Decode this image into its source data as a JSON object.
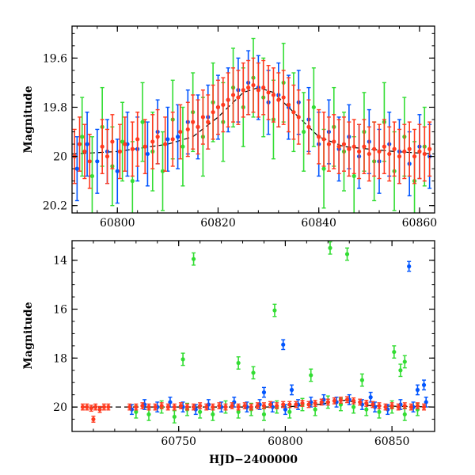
{
  "chart_data": [
    {
      "type": "scatter",
      "panel": "top",
      "title": "",
      "xlabel": "",
      "ylabel": "Magnitude",
      "xlim": [
        60791,
        60863
      ],
      "ylim": [
        20.23,
        19.47
      ],
      "y_inverted": true,
      "grid": false,
      "legend": "none",
      "x_ticks": [
        60800,
        60820,
        60840,
        60860
      ],
      "x_tick_labels": [
        "60800",
        "60820",
        "60840",
        "60860"
      ],
      "y_ticks": [
        19.6,
        19.8,
        20.0,
        20.2
      ],
      "y_tick_labels": [
        "19.6",
        "19.8",
        "20",
        "20.2"
      ],
      "model_curve": {
        "color": "#000000",
        "x": [
          60791,
          60800,
          60810,
          60815,
          60820,
          60825,
          60828,
          60831,
          60835,
          60840,
          60845,
          60850,
          60855,
          60863
        ],
        "y": [
          19.99,
          19.98,
          19.95,
          19.92,
          19.84,
          19.74,
          19.72,
          19.74,
          19.82,
          19.92,
          19.96,
          19.97,
          19.98,
          19.99
        ]
      },
      "series": [
        {
          "color": "#0055ff",
          "err": 0.13,
          "x": [
            60792,
            60794,
            60796,
            60798,
            60800,
            60802,
            60804,
            60806,
            60808,
            60810,
            60812,
            60814,
            60816,
            60818,
            60820,
            60822,
            60824,
            60826,
            60828,
            60830,
            60832,
            60834,
            60836,
            60838,
            60840,
            60842,
            60844,
            60846,
            60848,
            60850,
            60852,
            60854,
            60856,
            60858,
            60860,
            60862
          ],
          "y": [
            20.05,
            19.95,
            20.02,
            19.98,
            20.06,
            19.95,
            19.97,
            19.99,
            19.9,
            19.93,
            19.92,
            19.86,
            19.88,
            19.84,
            19.8,
            19.77,
            19.73,
            19.7,
            19.72,
            19.78,
            19.75,
            19.8,
            19.78,
            19.85,
            19.95,
            19.9,
            19.97,
            19.92,
            20.0,
            19.94,
            20.02,
            19.95,
            19.98,
            20.03,
            19.96,
            20.0
          ]
        },
        {
          "color": "#33dd33",
          "err": 0.16,
          "x": [
            60793,
            60795,
            60797,
            60799,
            60801,
            60803,
            60805,
            60807,
            60809,
            60811,
            60813,
            60815,
            60817,
            60819,
            60821,
            60823,
            60825,
            60827,
            60829,
            60831,
            60833,
            60835,
            60837,
            60839,
            60841,
            60843,
            60845,
            60847,
            60849,
            60851,
            60853,
            60855,
            60857,
            60859,
            60861
          ],
          "y": [
            19.92,
            20.08,
            19.88,
            20.04,
            19.94,
            20.1,
            19.86,
            19.98,
            20.06,
            19.85,
            19.96,
            19.82,
            19.92,
            19.78,
            19.86,
            19.72,
            19.8,
            19.68,
            19.76,
            19.85,
            19.7,
            19.82,
            19.9,
            19.8,
            20.05,
            19.88,
            19.98,
            20.08,
            19.9,
            20.02,
            19.86,
            20.06,
            19.92,
            20.1,
            19.96
          ]
        },
        {
          "color": "#ff3a1f",
          "err": 0.11,
          "x": [
            60791.5,
            60792.5,
            60793.5,
            60794.5,
            60797,
            60798,
            60799,
            60800.5,
            60801.5,
            60803,
            60804,
            60805.5,
            60807,
            60808,
            60809.5,
            60811,
            60812.5,
            60814,
            60815,
            60816,
            60817,
            60818,
            60819,
            60820,
            60821,
            60822,
            60823,
            60824,
            60825,
            60826,
            60827,
            60828,
            60829,
            60830,
            60831,
            60832,
            60833,
            60834,
            60835,
            60836,
            60838,
            60840,
            60841,
            60842,
            60843,
            60844,
            60845,
            60846,
            60847,
            60848,
            60849,
            60850,
            60851,
            60852,
            60853,
            60854,
            60855,
            60856,
            60857,
            60858,
            60859,
            60860,
            60861,
            60862
          ],
          "y": [
            20.0,
            19.95,
            19.98,
            20.02,
            19.96,
            20.0,
            19.94,
            19.98,
            19.95,
            19.97,
            19.93,
            19.96,
            19.94,
            19.92,
            19.95,
            19.93,
            19.9,
            19.89,
            19.86,
            19.88,
            19.84,
            19.86,
            19.82,
            19.8,
            19.79,
            19.77,
            19.75,
            19.76,
            19.73,
            19.72,
            19.71,
            19.73,
            19.72,
            19.74,
            19.75,
            19.77,
            19.76,
            19.79,
            19.82,
            19.84,
            19.88,
            19.92,
            19.93,
            19.95,
            19.94,
            19.96,
            19.95,
            19.97,
            19.96,
            19.98,
            19.96,
            19.99,
            19.97,
            19.98,
            19.96,
            19.99,
            19.97,
            20.0,
            19.98,
            19.97,
            20.0,
            19.98,
            19.99,
            19.97
          ]
        }
      ]
    },
    {
      "type": "scatter",
      "panel": "bottom",
      "title": "",
      "xlabel": "HJD−2400000",
      "ylabel": "Magnitude",
      "xlim": [
        60700,
        60870
      ],
      "ylim": [
        21.0,
        13.2
      ],
      "y_inverted": true,
      "grid": false,
      "legend": "none",
      "x_ticks": [
        60750,
        60800,
        60850
      ],
      "x_tick_labels": [
        "60750",
        "60800",
        "60850"
      ],
      "y_ticks": [
        14,
        16,
        18,
        20
      ],
      "y_tick_labels": [
        "14",
        "16",
        "18",
        "20"
      ],
      "model_curve": {
        "color": "#000000",
        "x": [
          60700,
          60750,
          60800,
          60815,
          60828,
          60840,
          60870
        ],
        "y": [
          20.0,
          20.0,
          20.0,
          19.9,
          19.72,
          19.95,
          20.0
        ]
      },
      "series": [
        {
          "color": "#0055ff",
          "err": 0.2,
          "x": [
            60728,
            60734,
            60740,
            60746,
            60752,
            60758,
            60764,
            60770,
            60776,
            60782,
            60788,
            60794,
            60800,
            60806,
            60812,
            60818,
            60824,
            60830,
            60836,
            60842,
            60848,
            60854,
            60860,
            60866,
            60799,
            60858,
            60790,
            60803,
            60840,
            60862,
            60865
          ],
          "y": [
            20.1,
            19.9,
            20.0,
            19.8,
            20.0,
            20.1,
            19.9,
            20.0,
            19.8,
            20.0,
            19.9,
            20.0,
            20.1,
            19.9,
            19.8,
            19.7,
            19.8,
            19.7,
            19.9,
            20.0,
            20.1,
            19.9,
            20.0,
            19.8,
            17.45,
            14.25,
            19.4,
            19.3,
            19.6,
            19.3,
            19.1
          ]
        },
        {
          "color": "#33dd33",
          "err": 0.25,
          "x": [
            60730,
            60736,
            60742,
            60748,
            60754,
            60760,
            60766,
            60772,
            60778,
            60784,
            60790,
            60796,
            60802,
            60808,
            60814,
            60820,
            60826,
            60832,
            60838,
            60844,
            60850,
            60856,
            60862,
            60757,
            60795,
            60821,
            60829,
            60851,
            60856,
            60854,
            60778,
            60752,
            60785,
            60812,
            60836
          ],
          "y": [
            20.2,
            20.3,
            20.0,
            20.4,
            20.1,
            20.2,
            20.3,
            20.0,
            20.2,
            20.1,
            20.3,
            20.0,
            20.2,
            19.9,
            20.1,
            19.8,
            19.9,
            20.0,
            20.1,
            20.2,
            20.0,
            20.3,
            20.1,
            13.95,
            16.05,
            13.5,
            13.75,
            17.75,
            18.15,
            18.5,
            18.2,
            18.05,
            18.6,
            18.7,
            18.9
          ]
        },
        {
          "color": "#ff3a1f",
          "err": 0.12,
          "x": [
            60705,
            60707,
            60709,
            60711,
            60713,
            60715,
            60717,
            60727,
            60730,
            60733,
            60736,
            60739,
            60742,
            60745,
            60748,
            60751,
            60754,
            60757,
            60760,
            60763,
            60766,
            60769,
            60772,
            60775,
            60778,
            60781,
            60784,
            60787,
            60790,
            60793,
            60796,
            60799,
            60802,
            60805,
            60808,
            60811,
            60814,
            60817,
            60820,
            60823,
            60826,
            60829,
            60832,
            60835,
            60838,
            60841,
            60844,
            60847,
            60850,
            60853,
            60856,
            60859,
            60862,
            60865,
            60710
          ],
          "y": [
            20.0,
            20.0,
            20.05,
            20.0,
            20.1,
            20.0,
            20.0,
            20.0,
            20.0,
            19.95,
            20.0,
            20.0,
            19.95,
            20.0,
            20.0,
            19.95,
            20.0,
            20.0,
            19.95,
            20.0,
            20.0,
            19.95,
            20.0,
            19.95,
            20.0,
            19.95,
            20.0,
            19.95,
            19.95,
            19.9,
            19.95,
            19.9,
            19.9,
            19.9,
            19.85,
            19.9,
            19.85,
            19.8,
            19.8,
            19.75,
            19.72,
            19.7,
            19.75,
            19.8,
            19.85,
            19.9,
            19.95,
            20.0,
            19.95,
            20.0,
            19.95,
            20.0,
            19.95,
            20.0,
            20.5
          ]
        }
      ]
    }
  ]
}
